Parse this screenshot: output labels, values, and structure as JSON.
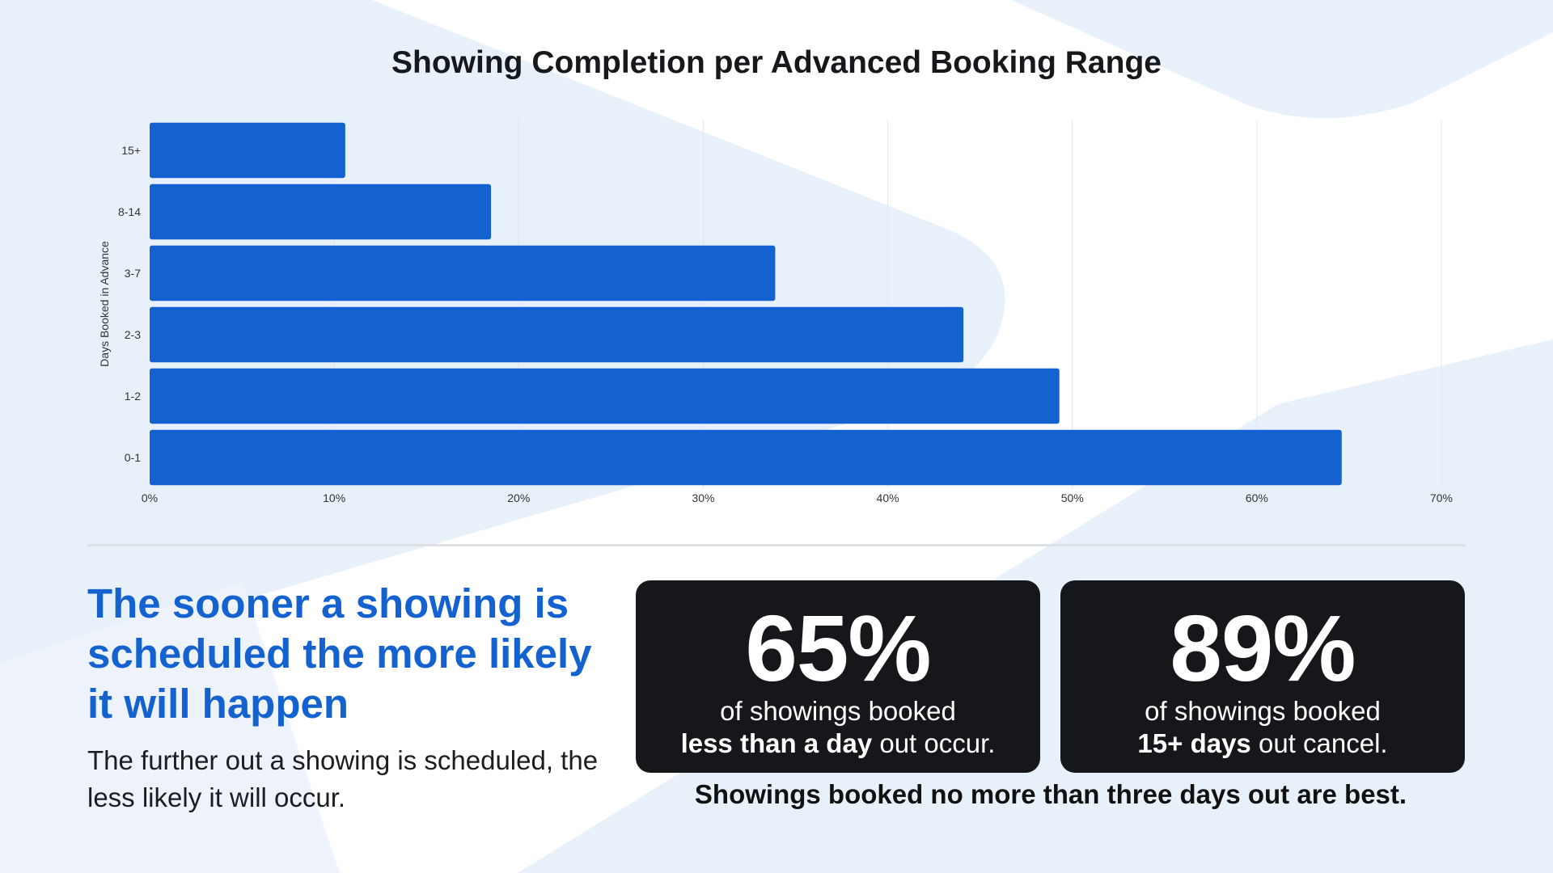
{
  "colors": {
    "accent": "#1462d0",
    "bar": "#1462d0",
    "card": "#16171b",
    "background_shape": "#e8f0fa"
  },
  "chart_data": {
    "type": "bar",
    "orientation": "horizontal",
    "title": "Showing Completion per Advanced Booking Range",
    "xlabel": "",
    "ylabel": "Days Booked in Advance",
    "categories": [
      "15+",
      "8-14",
      "3-7",
      "2-3",
      "1-2",
      "0-1"
    ],
    "values": [
      10.6,
      18.5,
      33.9,
      44.1,
      49.3,
      64.6
    ],
    "xlim": [
      0,
      70
    ],
    "xticks": [
      "0%",
      "10%",
      "20%",
      "30%",
      "40%",
      "50%",
      "60%",
      "70%"
    ],
    "grid": true,
    "legend": "none"
  },
  "headline": "The sooner a showing is scheduled the more likely it will happen",
  "subtext": "The further out a showing is scheduled, the less likely it will occur.",
  "stats": [
    {
      "value": "65%",
      "line1": "of showings booked",
      "line2_bold": "less than a day",
      "line2_rest": " out occur."
    },
    {
      "value": "89%",
      "line1": "of showings booked",
      "line2_bold": "15+ days",
      "line2_rest": " out cancel."
    }
  ],
  "footnote": "Showings booked no more than three days out are best."
}
